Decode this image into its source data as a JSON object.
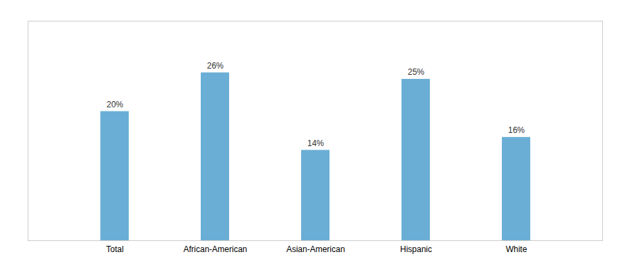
{
  "chart_data": {
    "type": "bar",
    "categories": [
      "Total",
      "African-American",
      "Asian-American",
      "Hispanic",
      "White"
    ],
    "values": [
      20,
      26,
      14,
      25,
      16
    ],
    "value_labels": [
      "20%",
      "26%",
      "14%",
      "25%",
      "16%"
    ],
    "data_labels": true,
    "color": "#6aaed6",
    "ylim": [
      0,
      34
    ],
    "tick_labels": "x",
    "grid": false
  }
}
